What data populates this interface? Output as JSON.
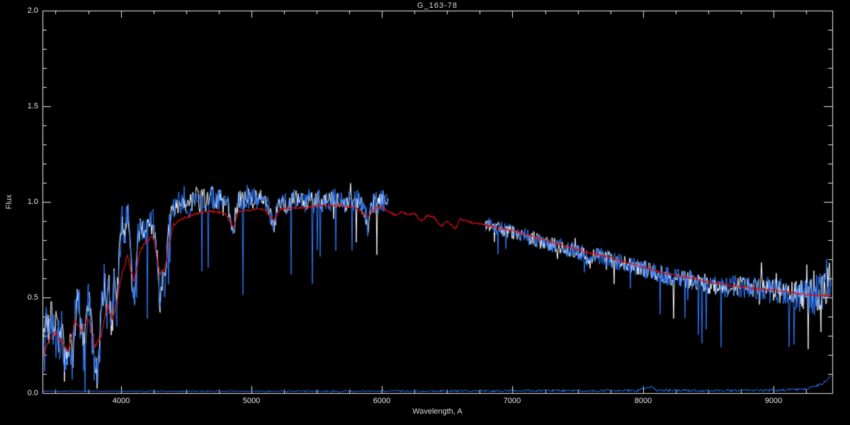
{
  "window": {
    "background": "#000000"
  },
  "chart_data": {
    "type": "line",
    "title": "G_163-78",
    "xlabel": "Wavelength, A",
    "ylabel": "Flux",
    "xlim": [
      3400,
      9450
    ],
    "ylim": [
      0.0,
      2.0
    ],
    "xticks": [
      4000,
      5000,
      6000,
      7000,
      8000,
      9000
    ],
    "x_minor": 250,
    "yticks": [
      0.0,
      0.5,
      1.0,
      1.5,
      2.0
    ],
    "y_minor": 0.1,
    "grid": false,
    "legend": "none",
    "background": "#000000",
    "axis_color": "#f0f0f0",
    "colors": {
      "observed": "#ffffff",
      "counterpart": "#2f7cff",
      "model": "#dd1111"
    },
    "curves": {
      "observed_baseline": [
        [
          3405,
          0.28
        ],
        [
          3430,
          0.38
        ],
        [
          3450,
          0.32
        ],
        [
          3470,
          0.42
        ],
        [
          3490,
          0.3
        ],
        [
          3510,
          0.38
        ],
        [
          3530,
          0.25
        ],
        [
          3550,
          0.33
        ],
        [
          3570,
          0.18
        ],
        [
          3590,
          0.12
        ],
        [
          3610,
          0.25
        ],
        [
          3630,
          0.15
        ],
        [
          3650,
          0.4
        ],
        [
          3665,
          0.55
        ],
        [
          3680,
          0.45
        ],
        [
          3700,
          0.3
        ],
        [
          3720,
          0.2
        ],
        [
          3740,
          0.42
        ],
        [
          3760,
          0.5
        ],
        [
          3780,
          0.28
        ],
        [
          3800,
          0.12
        ],
        [
          3820,
          0.1
        ],
        [
          3840,
          0.25
        ],
        [
          3860,
          0.5
        ],
        [
          3875,
          0.6
        ],
        [
          3890,
          0.4
        ],
        [
          3910,
          0.55
        ],
        [
          3933,
          0.32
        ],
        [
          3950,
          0.6
        ],
        [
          3970,
          0.45
        ],
        [
          3990,
          0.75
        ],
        [
          4010,
          0.9
        ],
        [
          4030,
          0.85
        ],
        [
          4060,
          0.92
        ],
        [
          4090,
          0.55
        ],
        [
          4110,
          0.52
        ],
        [
          4130,
          0.8
        ],
        [
          4160,
          0.88
        ],
        [
          4190,
          0.85
        ],
        [
          4220,
          0.92
        ],
        [
          4250,
          0.88
        ],
        [
          4280,
          0.7
        ],
        [
          4300,
          0.45
        ],
        [
          4320,
          0.62
        ],
        [
          4340,
          0.55
        ],
        [
          4365,
          0.85
        ],
        [
          4395,
          0.95
        ],
        [
          4425,
          1.0
        ],
        [
          4455,
          0.98
        ],
        [
          4485,
          1.02
        ],
        [
          4515,
          0.97
        ],
        [
          4545,
          1.0
        ],
        [
          4575,
          1.03
        ],
        [
          4605,
          1.0
        ],
        [
          4635,
          1.02
        ],
        [
          4665,
          0.98
        ],
        [
          4695,
          1.03
        ],
        [
          4725,
          1.0
        ],
        [
          4755,
          1.02
        ],
        [
          4785,
          0.98
        ],
        [
          4815,
          1.0
        ],
        [
          4845,
          0.92
        ],
        [
          4861,
          0.8
        ],
        [
          4880,
          0.95
        ],
        [
          4910,
          1.02
        ],
        [
          4940,
          1.0
        ],
        [
          4970,
          1.03
        ],
        [
          5000,
          1.0
        ],
        [
          5030,
          1.04
        ],
        [
          5060,
          1.0
        ],
        [
          5090,
          1.03
        ],
        [
          5120,
          0.98
        ],
        [
          5150,
          0.93
        ],
        [
          5175,
          0.88
        ],
        [
          5205,
          0.98
        ],
        [
          5235,
          1.02
        ],
        [
          5265,
          0.98
        ],
        [
          5295,
          1.0
        ],
        [
          5325,
          1.03
        ],
        [
          5355,
          1.0
        ],
        [
          5385,
          1.02
        ],
        [
          5415,
          1.0
        ],
        [
          5445,
          1.03
        ],
        [
          5475,
          1.0
        ],
        [
          5505,
          1.02
        ],
        [
          5535,
          0.99
        ],
        [
          5565,
          1.02
        ],
        [
          5595,
          1.0
        ],
        [
          5625,
          1.02
        ],
        [
          5655,
          1.0
        ],
        [
          5685,
          1.02
        ],
        [
          5715,
          0.99
        ],
        [
          5745,
          1.01
        ],
        [
          5775,
          1.0
        ],
        [
          5805,
          1.01
        ],
        [
          5835,
          0.99
        ],
        [
          5865,
          0.97
        ],
        [
          5893,
          0.87
        ],
        [
          5920,
          0.98
        ],
        [
          5950,
          1.0
        ],
        [
          5980,
          1.0
        ],
        [
          6010,
          1.01
        ],
        [
          6050,
          1.0
        ],
        [
          6790,
          0.88
        ],
        [
          6850,
          0.87
        ],
        [
          6900,
          0.86
        ],
        [
          6950,
          0.85
        ],
        [
          7000,
          0.84
        ],
        [
          7050,
          0.83
        ],
        [
          7100,
          0.82
        ],
        [
          7150,
          0.81
        ],
        [
          7200,
          0.8
        ],
        [
          7250,
          0.79
        ],
        [
          7300,
          0.78
        ],
        [
          7350,
          0.77
        ],
        [
          7400,
          0.76
        ],
        [
          7450,
          0.75
        ],
        [
          7500,
          0.74
        ],
        [
          7550,
          0.73
        ],
        [
          7595,
          0.68
        ],
        [
          7620,
          0.71
        ],
        [
          7650,
          0.72
        ],
        [
          7700,
          0.71
        ],
        [
          7750,
          0.7
        ],
        [
          7800,
          0.69
        ],
        [
          7850,
          0.68
        ],
        [
          7900,
          0.67
        ],
        [
          7950,
          0.66
        ],
        [
          8000,
          0.65
        ],
        [
          8050,
          0.64
        ],
        [
          8100,
          0.63
        ],
        [
          8150,
          0.62
        ],
        [
          8200,
          0.61
        ],
        [
          8250,
          0.605
        ],
        [
          8300,
          0.6
        ],
        [
          8350,
          0.595
        ],
        [
          8400,
          0.59
        ],
        [
          8450,
          0.585
        ],
        [
          8500,
          0.565
        ],
        [
          8542,
          0.55
        ],
        [
          8570,
          0.58
        ],
        [
          8600,
          0.57
        ],
        [
          8662,
          0.545
        ],
        [
          8700,
          0.565
        ],
        [
          8750,
          0.56
        ],
        [
          8800,
          0.555
        ],
        [
          8850,
          0.55
        ],
        [
          8900,
          0.545
        ],
        [
          8950,
          0.54
        ],
        [
          9000,
          0.535
        ],
        [
          9050,
          0.53
        ],
        [
          9100,
          0.525
        ],
        [
          9150,
          0.52
        ],
        [
          9200,
          0.515
        ],
        [
          9250,
          0.51
        ],
        [
          9300,
          0.51
        ],
        [
          9350,
          0.52
        ],
        [
          9400,
          0.56
        ],
        [
          9440,
          0.62
        ]
      ],
      "model_baseline": [
        [
          3405,
          0.2
        ],
        [
          3450,
          0.28
        ],
        [
          3500,
          0.32
        ],
        [
          3550,
          0.26
        ],
        [
          3600,
          0.22
        ],
        [
          3650,
          0.38
        ],
        [
          3700,
          0.32
        ],
        [
          3750,
          0.4
        ],
        [
          3800,
          0.24
        ],
        [
          3850,
          0.3
        ],
        [
          3900,
          0.46
        ],
        [
          3933,
          0.38
        ],
        [
          3970,
          0.48
        ],
        [
          4000,
          0.6
        ],
        [
          4050,
          0.72
        ],
        [
          4100,
          0.58
        ],
        [
          4150,
          0.75
        ],
        [
          4200,
          0.8
        ],
        [
          4250,
          0.82
        ],
        [
          4300,
          0.62
        ],
        [
          4340,
          0.66
        ],
        [
          4400,
          0.88
        ],
        [
          4450,
          0.9
        ],
        [
          4500,
          0.92
        ],
        [
          4550,
          0.93
        ],
        [
          4600,
          0.94
        ],
        [
          4700,
          0.95
        ],
        [
          4800,
          0.94
        ],
        [
          4861,
          0.86
        ],
        [
          4900,
          0.95
        ],
        [
          5000,
          0.96
        ],
        [
          5100,
          0.96
        ],
        [
          5170,
          0.9
        ],
        [
          5220,
          0.96
        ],
        [
          5300,
          0.97
        ],
        [
          5400,
          0.97
        ],
        [
          5500,
          0.98
        ],
        [
          5600,
          0.98
        ],
        [
          5700,
          0.98
        ],
        [
          5800,
          0.97
        ],
        [
          5890,
          0.92
        ],
        [
          5950,
          0.97
        ],
        [
          6000,
          0.97
        ],
        [
          6050,
          0.95
        ],
        [
          6100,
          0.93
        ],
        [
          6150,
          0.95
        ],
        [
          6200,
          0.93
        ],
        [
          6250,
          0.94
        ],
        [
          6300,
          0.9
        ],
        [
          6350,
          0.93
        ],
        [
          6400,
          0.92
        ],
        [
          6450,
          0.87
        ],
        [
          6500,
          0.9
        ],
        [
          6563,
          0.86
        ],
        [
          6600,
          0.91
        ],
        [
          6650,
          0.9
        ],
        [
          6700,
          0.89
        ],
        [
          6800,
          0.88
        ],
        [
          6900,
          0.86
        ],
        [
          7000,
          0.85
        ],
        [
          7100,
          0.83
        ],
        [
          7200,
          0.81
        ],
        [
          7300,
          0.79
        ],
        [
          7400,
          0.77
        ],
        [
          7500,
          0.75
        ],
        [
          7600,
          0.73
        ],
        [
          7700,
          0.72
        ],
        [
          7800,
          0.7
        ],
        [
          7900,
          0.68
        ],
        [
          8000,
          0.66
        ],
        [
          8100,
          0.64
        ],
        [
          8200,
          0.62
        ],
        [
          8300,
          0.61
        ],
        [
          8400,
          0.6
        ],
        [
          8500,
          0.58
        ],
        [
          8600,
          0.57
        ],
        [
          8700,
          0.56
        ],
        [
          8800,
          0.55
        ],
        [
          8900,
          0.545
        ],
        [
          9000,
          0.54
        ],
        [
          9100,
          0.53
        ],
        [
          9200,
          0.52
        ],
        [
          9300,
          0.515
        ],
        [
          9400,
          0.51
        ],
        [
          9440,
          0.51
        ]
      ],
      "error_baseline": [
        [
          3405,
          0.01
        ],
        [
          6050,
          0.01
        ],
        [
          6790,
          0.012
        ],
        [
          7950,
          0.013
        ],
        [
          8020,
          0.03
        ],
        [
          8060,
          0.035
        ],
        [
          8100,
          0.015
        ],
        [
          8500,
          0.013
        ],
        [
          9000,
          0.015
        ],
        [
          9250,
          0.02
        ],
        [
          9380,
          0.05
        ],
        [
          9440,
          0.09
        ]
      ]
    },
    "series": [
      {
        "name": "error-spectrum-blue",
        "color": "#2f7cff",
        "width": 1,
        "seed": 5,
        "baseline": "error_baseline",
        "segments": [
          [
            3405,
            9440
          ]
        ],
        "noise": [
          [
            3405,
            0.003
          ],
          [
            9440,
            0.008
          ]
        ]
      },
      {
        "name": "observed-spectrum-white",
        "color": "#ffffff",
        "width": 1,
        "seed": 7,
        "baseline": "observed_baseline",
        "segments": [
          [
            3405,
            6050
          ],
          [
            6790,
            9440
          ]
        ],
        "noise": [
          [
            3405,
            0.09
          ],
          [
            3900,
            0.1
          ],
          [
            4100,
            0.08
          ],
          [
            4400,
            0.06
          ],
          [
            5000,
            0.05
          ],
          [
            6050,
            0.05
          ],
          [
            6790,
            0.035
          ],
          [
            7600,
            0.04
          ],
          [
            8200,
            0.045
          ],
          [
            8800,
            0.055
          ],
          [
            9100,
            0.07
          ],
          [
            9300,
            0.09
          ],
          [
            9440,
            0.13
          ]
        ],
        "spikes": {
          "prob": 0.02,
          "depth": [
            [
              3405,
              0.25
            ],
            [
              4500,
              0.35
            ],
            [
              6050,
              0.4
            ],
            [
              6790,
              0.12
            ],
            [
              8000,
              0.18
            ],
            [
              9000,
              0.3
            ],
            [
              9440,
              0.4
            ]
          ]
        },
        "upspikes": {
          "prob": 0.008,
          "depth": [
            [
              3405,
              0.06
            ],
            [
              8000,
              0.08
            ],
            [
              9200,
              0.2
            ],
            [
              9440,
              0.3
            ]
          ]
        }
      },
      {
        "name": "observed-spectrum-blue",
        "color": "#2f7cff",
        "width": 1,
        "seed": 13,
        "baseline": "observed_baseline",
        "segments": [
          [
            3405,
            6050
          ],
          [
            6790,
            9440
          ]
        ],
        "noise": [
          [
            3405,
            0.11
          ],
          [
            3900,
            0.12
          ],
          [
            4100,
            0.09
          ],
          [
            4400,
            0.07
          ],
          [
            5000,
            0.06
          ],
          [
            6050,
            0.06
          ],
          [
            6790,
            0.04
          ],
          [
            7600,
            0.045
          ],
          [
            8200,
            0.05
          ],
          [
            8800,
            0.06
          ],
          [
            9100,
            0.08
          ],
          [
            9300,
            0.1
          ],
          [
            9440,
            0.14
          ]
        ],
        "spikes": {
          "prob": 0.03,
          "depth": [
            [
              3405,
              0.3
            ],
            [
              4500,
              0.5
            ],
            [
              6050,
              0.55
            ],
            [
              6790,
              0.18
            ],
            [
              8000,
              0.28
            ],
            [
              9000,
              0.45
            ],
            [
              9440,
              0.55
            ]
          ]
        }
      },
      {
        "name": "model-template-red",
        "color": "#dd1111",
        "width": 1.2,
        "seed": 3,
        "baseline": "model_baseline",
        "segments": [
          [
            3405,
            9440
          ]
        ],
        "noise": [
          [
            3405,
            0.012
          ],
          [
            4000,
            0.01
          ],
          [
            5000,
            0.006
          ],
          [
            9440,
            0.006
          ]
        ]
      }
    ]
  }
}
